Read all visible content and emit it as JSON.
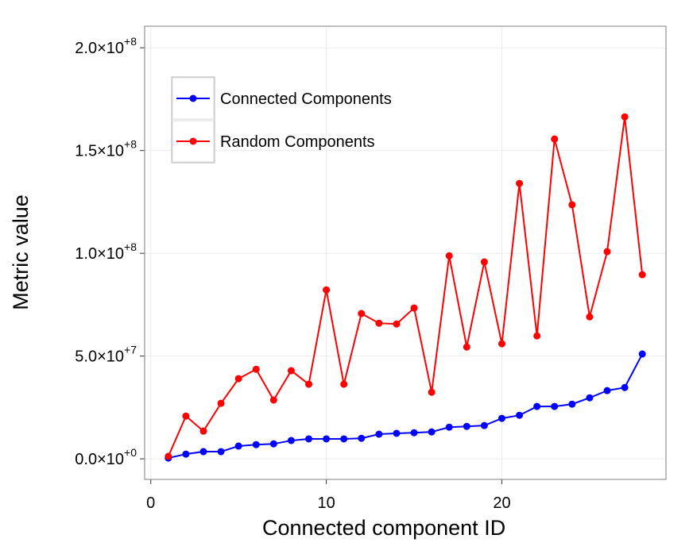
{
  "chart_data": {
    "type": "line",
    "x_label": "Connected component ID",
    "y_label": "Metric value",
    "x": [
      1,
      2,
      3,
      4,
      5,
      6,
      7,
      8,
      9,
      10,
      11,
      12,
      13,
      14,
      15,
      16,
      17,
      18,
      19,
      20,
      21,
      22,
      23,
      24,
      25,
      26,
      27,
      28
    ],
    "series": [
      {
        "name": "Connected Components",
        "color": "#0000ff",
        "values": [
          400000,
          2300000,
          3500000,
          3500000,
          6200000,
          6900000,
          7300000,
          8900000,
          9700000,
          9700000,
          9700000,
          10000000,
          12000000,
          12400000,
          12700000,
          13100000,
          15400000,
          15800000,
          16200000,
          19700000,
          21200000,
          25500000,
          25500000,
          26600000,
          29700000,
          33200000,
          34700000,
          51000000
        ]
      },
      {
        "name": "Random Components",
        "color": "#ff0000",
        "values": [
          1200000,
          20800000,
          13500000,
          27000000,
          39000000,
          43600000,
          28600000,
          42900000,
          36300000,
          82200000,
          36300000,
          70700000,
          66000000,
          65600000,
          73400000,
          32400000,
          98800000,
          54400000,
          95800000,
          56000000,
          134000000,
          59800000,
          155600000,
          123600000,
          69100000,
          100800000,
          166400000,
          89600000
        ]
      }
    ],
    "xlim": [
      -0.35,
      29.35
    ],
    "xticks": [
      0,
      10,
      20
    ],
    "ylim": [
      -10000000,
      210500000
    ],
    "yticks": [
      {
        "value": 0,
        "label": "0.0×10",
        "exponent": "+0"
      },
      {
        "value": 50000000,
        "label": "5.0×10",
        "exponent": "+7"
      },
      {
        "value": 100000000,
        "label": "1.0×10",
        "exponent": "+8"
      },
      {
        "value": 150000000,
        "label": "1.5×10",
        "exponent": "+8"
      },
      {
        "value": 200000000,
        "label": "2.0×10",
        "exponent": "+8"
      }
    ],
    "grid": true,
    "legend_position": "top-left"
  }
}
